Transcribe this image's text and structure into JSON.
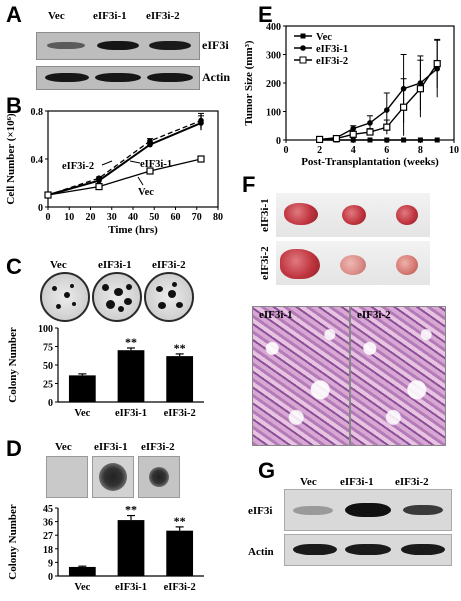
{
  "panels": {
    "A": "A",
    "B": "B",
    "C": "C",
    "D": "D",
    "E": "E",
    "F": "F",
    "G": "G"
  },
  "panel_a": {
    "lanes": [
      "Vec",
      "eIF3i-1",
      "eIF3i-2"
    ],
    "rows": [
      "eIF3i",
      "Actin"
    ]
  },
  "panel_c": {
    "dishes": [
      "Vec",
      "eIF3i-1",
      "eIF3i-2"
    ]
  },
  "panel_d": {
    "dishes": [
      "Vec",
      "eIF3i-1",
      "eIF3i-2"
    ]
  },
  "panel_f": {
    "rows": [
      "eIF3i-1",
      "eIF3i-2"
    ],
    "histo": [
      "eIF3i-1",
      "eIF3i-2"
    ]
  },
  "panel_g": {
    "lanes": [
      "Vec",
      "eIF3i-1",
      "eIF3i-2"
    ],
    "rows": [
      "eIF3i",
      "Actin"
    ]
  },
  "chart_data": [
    {
      "panel": "B",
      "type": "line",
      "xlabel": "Time (hrs)",
      "ylabel": "Cell Number (×10⁶)",
      "xlim": [
        0,
        80
      ],
      "ylim": [
        0,
        0.8
      ],
      "xticks": [
        "0",
        "10",
        "20",
        "30",
        "40",
        "50",
        "60",
        "70",
        "80"
      ],
      "yticks": [
        "0",
        "0.4",
        "0.8"
      ],
      "x": [
        0,
        24,
        48,
        72
      ],
      "series": [
        {
          "name": "eIF3i-2",
          "values": [
            0.1,
            0.24,
            0.55,
            0.72
          ],
          "err": [
            0,
            0.01,
            0.02,
            0.06
          ],
          "style": "dashed",
          "marker": "dot"
        },
        {
          "name": "eIF3i-1",
          "values": [
            0.1,
            0.22,
            0.52,
            0.7
          ],
          "err": [
            0,
            0.01,
            0.02,
            0.06
          ],
          "style": "solid-bold",
          "marker": "dot"
        },
        {
          "name": "Vec",
          "values": [
            0.1,
            0.17,
            0.3,
            0.4
          ],
          "err": [
            0,
            0.01,
            0.01,
            0.01
          ],
          "style": "solid",
          "marker": "square"
        }
      ]
    },
    {
      "panel": "C",
      "type": "bar",
      "ylabel": "Colony Number",
      "categories": [
        "Vec",
        "eIF3i-1",
        "eIF3i-2"
      ],
      "values": [
        36,
        70,
        62
      ],
      "err": [
        2,
        3,
        3
      ],
      "ylim": [
        0,
        100
      ],
      "yticks": [
        "0",
        "25",
        "50",
        "75",
        "100"
      ],
      "annotations": [
        "",
        "**",
        "**"
      ]
    },
    {
      "panel": "D",
      "type": "bar",
      "ylabel": "Colony Number",
      "categories": [
        "Vec",
        "eIF3i-1",
        "eIF3i-2"
      ],
      "values": [
        6,
        37,
        30
      ],
      "err": [
        0.5,
        3,
        2.5
      ],
      "ylim": [
        0,
        45
      ],
      "yticks": [
        "0",
        "9",
        "18",
        "27",
        "36",
        "45"
      ],
      "annotations": [
        "",
        "**",
        "**"
      ]
    },
    {
      "panel": "E",
      "type": "line",
      "xlabel": "Post-Transplantation (weeks)",
      "ylabel": "Tumor Size (mm³)",
      "xlim": [
        0,
        10
      ],
      "ylim": [
        0,
        400
      ],
      "xticks": [
        "0",
        "2",
        "4",
        "6",
        "8",
        "10"
      ],
      "yticks": [
        "0",
        "100",
        "200",
        "300",
        "400"
      ],
      "x": [
        2,
        3,
        4,
        5,
        6,
        7,
        8,
        9
      ],
      "series": [
        {
          "name": "Vec",
          "values": [
            0,
            0,
            0,
            0,
            0,
            0,
            0,
            0
          ],
          "err": [
            0,
            0,
            0,
            0,
            0,
            0,
            0,
            0
          ],
          "marker": "square-filled"
        },
        {
          "name": "eIF3i-1",
          "values": [
            2,
            8,
            40,
            60,
            105,
            180,
            200,
            250
          ],
          "err": [
            2,
            4,
            10,
            25,
            60,
            120,
            95,
            100
          ],
          "marker": "dot"
        },
        {
          "name": "eIF3i-2",
          "values": [
            2,
            5,
            20,
            28,
            45,
            115,
            180,
            268
          ],
          "err": [
            2,
            3,
            8,
            12,
            25,
            100,
            100,
            85
          ],
          "marker": "square-open"
        }
      ]
    }
  ]
}
